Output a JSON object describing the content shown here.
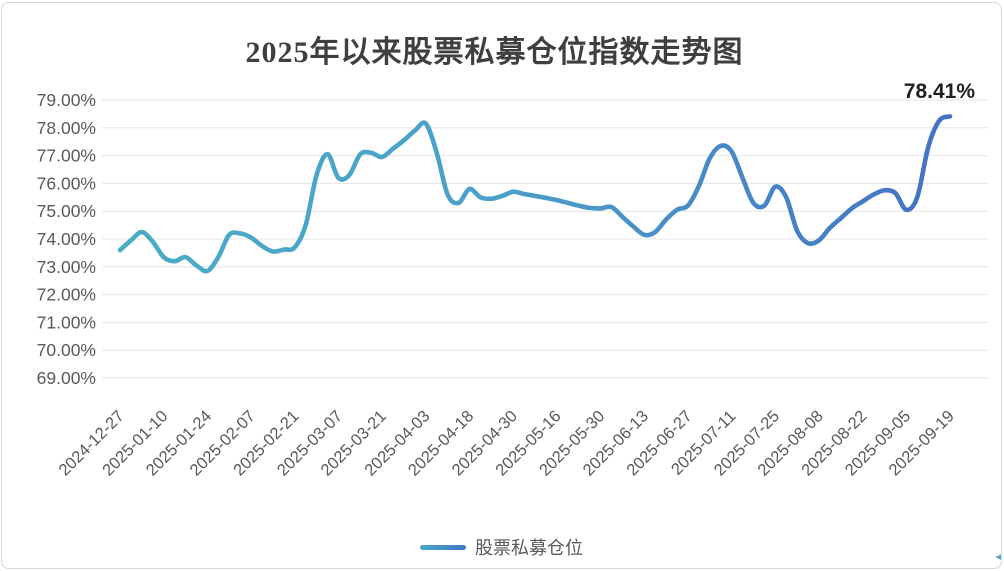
{
  "title": "2025年以来股票私募仓位指数走势图",
  "legend": {
    "series_label": "股票私募仓位"
  },
  "corner_icon": "left-arrow-icon",
  "colors": {
    "line_gradient_start": "#4BACC6",
    "line_gradient_end": "#4472C4",
    "grid": "#E5E5E5",
    "axis_text": "#595959",
    "title_text": "#3F3F3F",
    "annotation_text": "#1F1F1F",
    "frame_border": "#D8D8D8"
  },
  "chart_data": {
    "type": "line",
    "title": "2025年以来股票私募仓位指数走势图",
    "xlabel": "",
    "ylabel": "",
    "ylim": [
      69,
      79
    ],
    "grid": "horizontal",
    "legend_position": "bottom",
    "y_tick_labels": [
      "79.00%",
      "78.00%",
      "77.00%",
      "76.00%",
      "75.00%",
      "74.00%",
      "73.00%",
      "72.00%",
      "71.00%",
      "70.00%",
      "69.00%"
    ],
    "x_tick_labels": [
      "2024-12-27",
      "2025-01-10",
      "2025-01-24",
      "2025-02-07",
      "2025-02-21",
      "2025-03-07",
      "2025-03-21",
      "2025-04-03",
      "2025-04-18",
      "2025-04-30",
      "2025-05-16",
      "2025-05-30",
      "2025-06-13",
      "2025-06-27",
      "2025-07-11",
      "2025-07-25",
      "2025-08-08",
      "2025-08-22",
      "2025-09-05",
      "2025-09-19"
    ],
    "x_labeled_every_n_points": 4,
    "last_point_label": "78.41%",
    "series": [
      {
        "name": "股票私募仓位",
        "unit": "%",
        "values": [
          73.6,
          73.95,
          74.25,
          73.9,
          73.35,
          73.2,
          73.35,
          73.05,
          72.85,
          73.35,
          74.15,
          74.2,
          74.05,
          73.75,
          73.55,
          73.62,
          73.7,
          74.5,
          76.3,
          77.05,
          76.2,
          76.3,
          77.05,
          77.1,
          76.95,
          77.25,
          77.55,
          77.9,
          78.15,
          77.1,
          75.6,
          75.3,
          75.8,
          75.5,
          75.45,
          75.55,
          75.7,
          75.62,
          75.55,
          75.48,
          75.4,
          75.3,
          75.2,
          75.12,
          75.1,
          75.15,
          74.8,
          74.45,
          74.15,
          74.25,
          74.7,
          75.05,
          75.2,
          75.9,
          76.9,
          77.35,
          77.15,
          76.2,
          75.3,
          75.2,
          75.88,
          75.5,
          74.3,
          73.85,
          73.95,
          74.4,
          74.75,
          75.1,
          75.35,
          75.6,
          75.75,
          75.65,
          75.05,
          75.5,
          77.3,
          78.25,
          78.41
        ]
      }
    ]
  }
}
